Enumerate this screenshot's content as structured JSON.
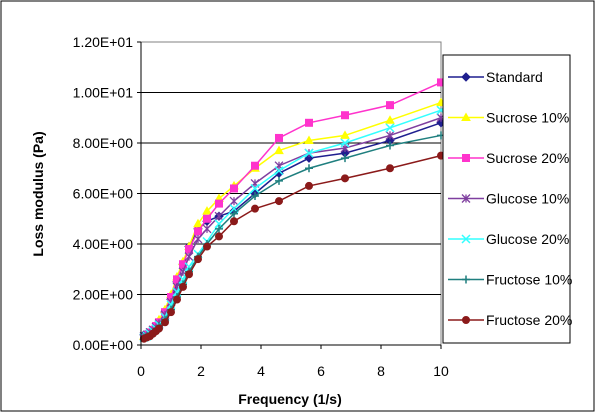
{
  "chart_data": {
    "type": "line",
    "xlabel": "Frequency (1/s)",
    "ylabel": "Loss modulus (Pa)",
    "xlim": [
      0,
      10
    ],
    "ylim": [
      0,
      12
    ],
    "x_ticks": [
      "0",
      "2",
      "4",
      "6",
      "8",
      "10"
    ],
    "y_ticks": [
      "0.00E+00",
      "2.00E+00",
      "4.00E+00",
      "6.00E+00",
      "8.00E+00",
      "1.00E+01",
      "1.20E+01"
    ],
    "grid": "horizontal",
    "legend_position": "right",
    "x": [
      0.1,
      0.2,
      0.3,
      0.4,
      0.5,
      0.6,
      0.8,
      1.0,
      1.2,
      1.4,
      1.6,
      1.9,
      2.2,
      2.6,
      3.1,
      3.8,
      4.6,
      5.6,
      6.8,
      8.3,
      10.0
    ],
    "series": [
      {
        "name": "Standard",
        "color": "#1f1f8f",
        "marker": "diamond",
        "values": [
          0.4,
          0.45,
          0.5,
          0.6,
          0.75,
          0.9,
          1.3,
          1.8,
          2.5,
          3.2,
          3.9,
          4.6,
          4.9,
          5.1,
          5.3,
          6.0,
          6.8,
          7.4,
          7.6,
          8.1,
          8.8
        ]
      },
      {
        "name": "Sucrose  10%",
        "color": "#ffff00",
        "marker": "triangle",
        "values": [
          0.35,
          0.45,
          0.55,
          0.65,
          0.8,
          1.0,
          1.4,
          2.0,
          2.7,
          3.3,
          3.9,
          4.8,
          5.3,
          5.8,
          6.3,
          7.0,
          7.7,
          8.1,
          8.3,
          8.9,
          9.6
        ]
      },
      {
        "name": "Sucrose 20%",
        "color": "#ff33cc",
        "marker": "square",
        "values": [
          0.3,
          0.4,
          0.5,
          0.6,
          0.75,
          0.9,
          1.3,
          1.9,
          2.6,
          3.2,
          3.8,
          4.5,
          5.0,
          5.6,
          6.2,
          7.1,
          8.2,
          8.8,
          9.1,
          9.5,
          10.4
        ]
      },
      {
        "name": "Glucose 10%",
        "color": "#7f3f9f",
        "marker": "asterisk",
        "values": [
          0.35,
          0.4,
          0.5,
          0.6,
          0.7,
          0.85,
          1.2,
          1.7,
          2.3,
          2.9,
          3.5,
          4.2,
          4.6,
          5.1,
          5.7,
          6.4,
          7.1,
          7.6,
          7.8,
          8.3,
          9.0
        ]
      },
      {
        "name": "Glucose 20%",
        "color": "#33ffff",
        "marker": "x",
        "values": [
          0.3,
          0.35,
          0.45,
          0.55,
          0.65,
          0.8,
          1.1,
          1.6,
          2.1,
          2.6,
          3.1,
          3.6,
          4.1,
          4.8,
          5.4,
          6.2,
          6.9,
          7.6,
          8.0,
          8.6,
          9.3
        ]
      },
      {
        "name": "Fructose 10%",
        "color": "#1f7f7f",
        "marker": "plus",
        "values": [
          0.3,
          0.35,
          0.4,
          0.5,
          0.6,
          0.75,
          1.0,
          1.4,
          1.9,
          2.4,
          2.9,
          3.5,
          4.0,
          4.6,
          5.2,
          5.9,
          6.5,
          7.0,
          7.4,
          7.9,
          8.3
        ]
      },
      {
        "name": "Fructose  20%",
        "color": "#8b1a1a",
        "marker": "circle",
        "values": [
          0.25,
          0.3,
          0.35,
          0.45,
          0.55,
          0.65,
          0.9,
          1.3,
          1.8,
          2.3,
          2.8,
          3.4,
          3.9,
          4.3,
          4.9,
          5.4,
          5.7,
          6.3,
          6.6,
          7.0,
          7.5
        ]
      }
    ]
  }
}
